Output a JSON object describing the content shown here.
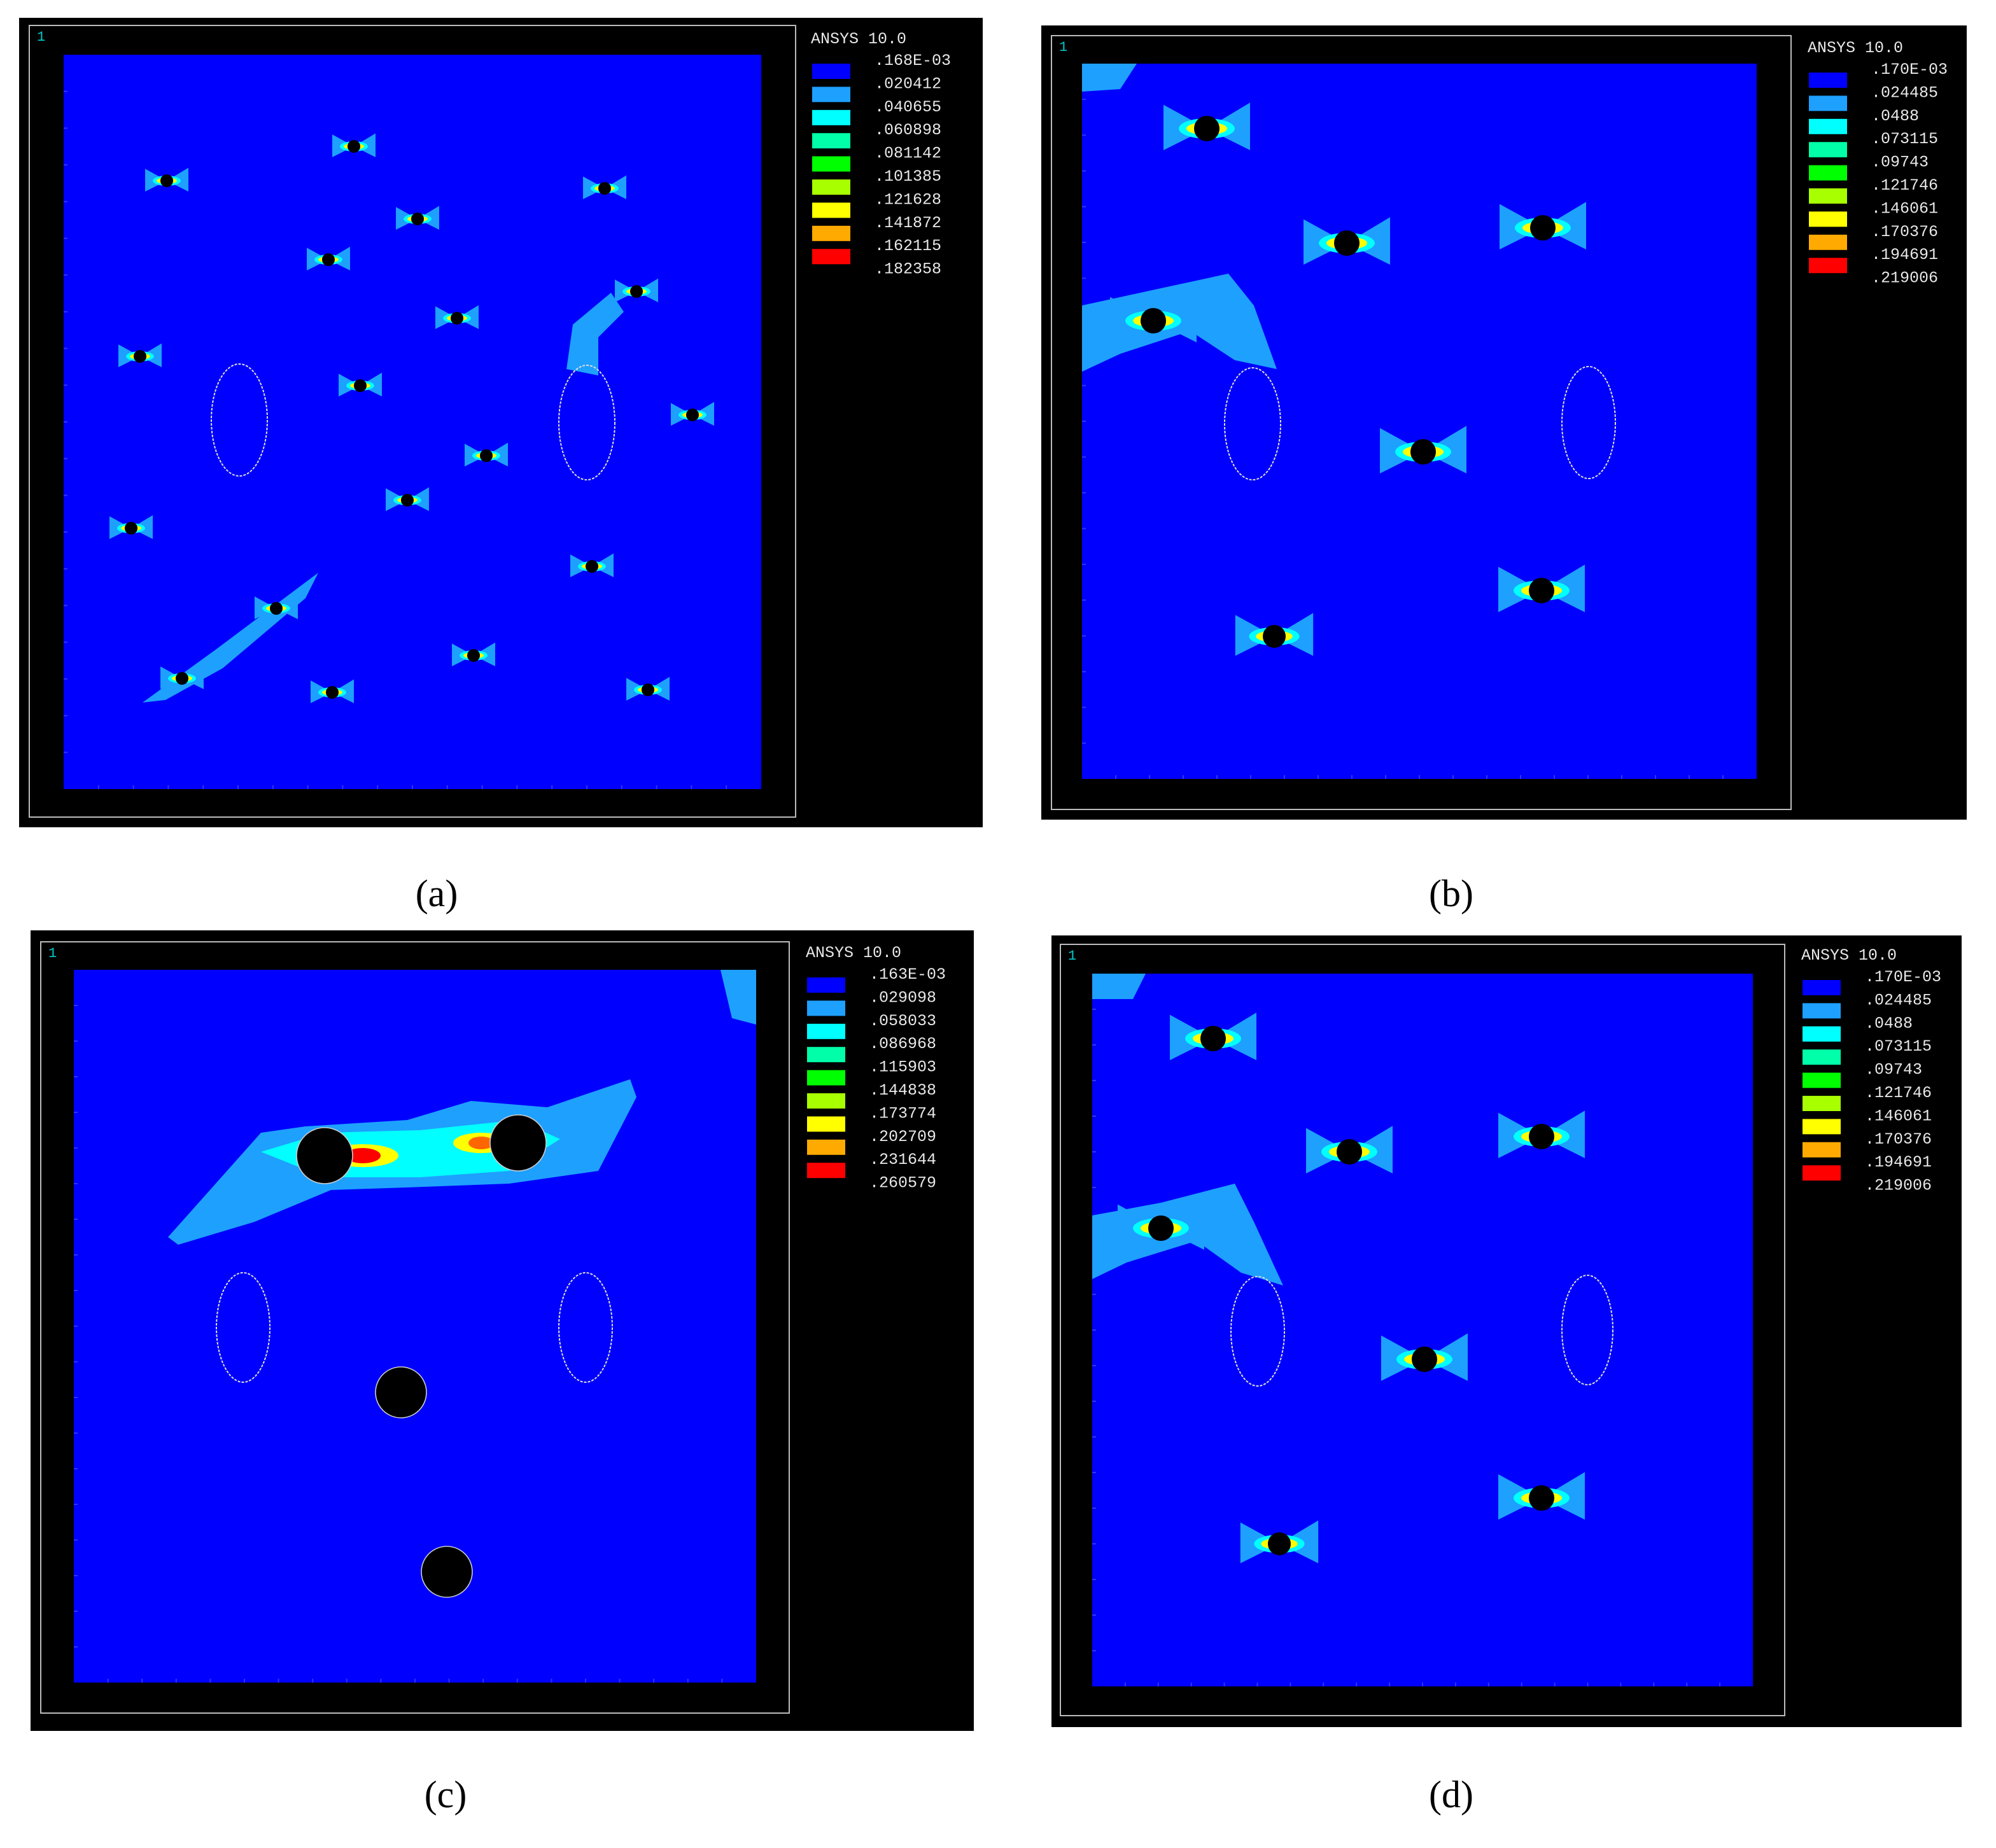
{
  "figure": {
    "panels": [
      {
        "caption": "(a)",
        "window": "1",
        "software": "ANSYS 10.0",
        "legend": [
          ".168E-03",
          ".020412",
          ".040655",
          ".060898",
          ".081142",
          ".101385",
          ".121628",
          ".141872",
          ".162115",
          ".182358"
        ]
      },
      {
        "caption": "(b)",
        "window": "1",
        "software": "ANSYS 10.0",
        "legend": [
          ".170E-03",
          ".024485",
          ".0488",
          ".073115",
          ".09743",
          ".121746",
          ".146061",
          ".170376",
          ".194691",
          ".219006"
        ]
      },
      {
        "caption": "(c)",
        "window": "1",
        "software": "ANSYS 10.0",
        "legend": [
          ".163E-03",
          ".029098",
          ".058033",
          ".086968",
          ".115903",
          ".144838",
          ".173774",
          ".202709",
          ".231644",
          ".260579"
        ]
      },
      {
        "caption": "(d)",
        "window": "1",
        "software": "ANSYS 10.0",
        "legend": [
          ".170E-03",
          ".024485",
          ".0488",
          ".073115",
          ".09743",
          ".121746",
          ".146061",
          ".170376",
          ".194691",
          ".219006"
        ]
      }
    ]
  }
}
